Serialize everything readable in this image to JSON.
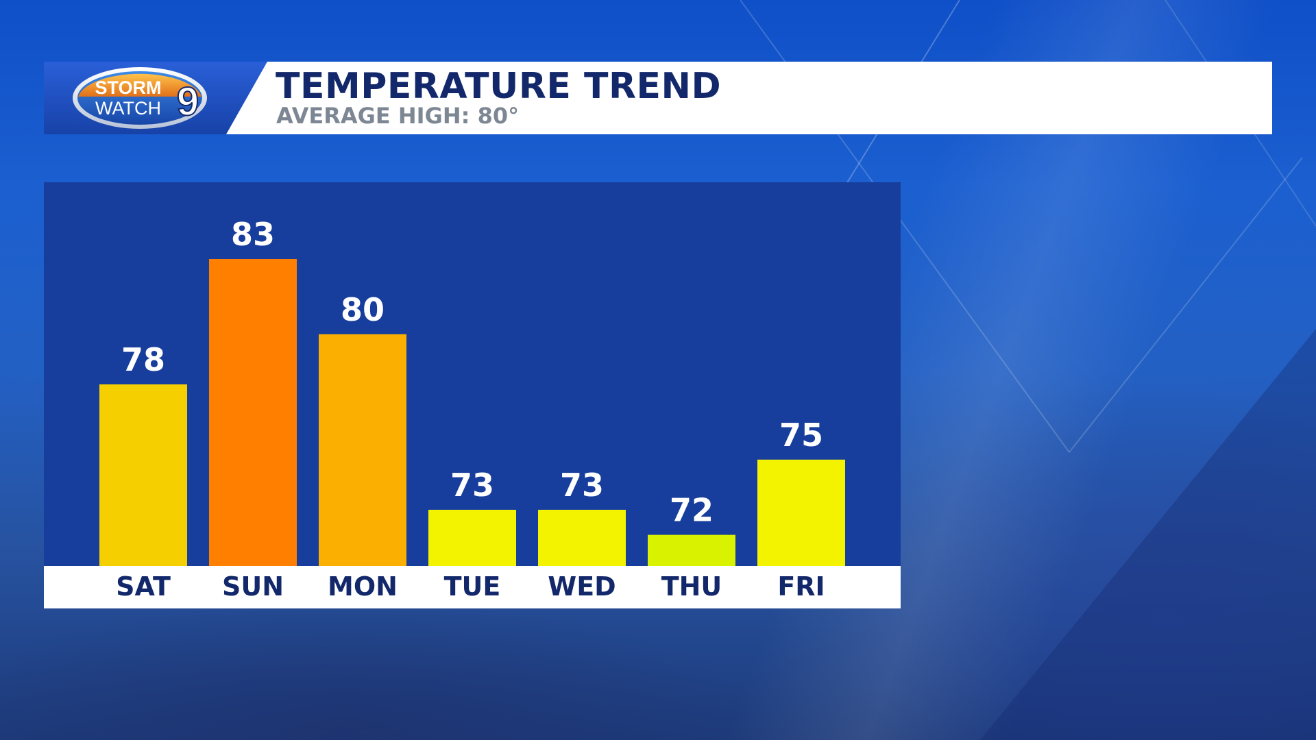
{
  "header": {
    "logo_top": "STORM",
    "logo_bottom": "WATCH",
    "logo_number": "9",
    "title": "TEMPERATURE TREND",
    "subtitle": "AVERAGE HIGH: 80°"
  },
  "chart_data": {
    "type": "bar",
    "title": "TEMPERATURE TREND",
    "subtitle": "AVERAGE HIGH: 80°",
    "categories": [
      "SAT",
      "SUN",
      "MON",
      "TUE",
      "WED",
      "THU",
      "FRI"
    ],
    "values": [
      78,
      83,
      80,
      73,
      73,
      72,
      75
    ],
    "colors": [
      "#f6cf00",
      "#ff7f00",
      "#fbaf00",
      "#f3f300",
      "#f3f300",
      "#d8f200",
      "#f3f300"
    ],
    "value_labels": true,
    "grid": false,
    "legend": "none"
  },
  "colors": {
    "panel": "#173e9c",
    "title": "#13286b",
    "subtitle": "#7d8794",
    "value_label": "#ffffff"
  }
}
